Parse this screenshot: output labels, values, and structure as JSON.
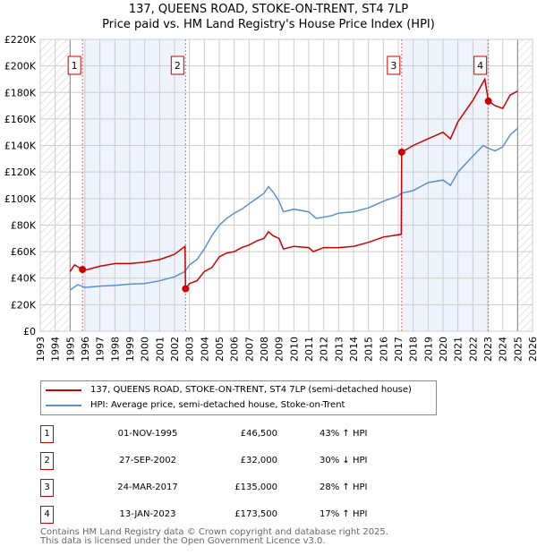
{
  "chart_data": {
    "type": "line",
    "title": "137, QUEENS ROAD, STOKE-ON-TRENT, ST4 7LP",
    "subtitle": "Price paid vs. HM Land Registry's House Price Index (HPI)",
    "xlim": [
      1993,
      2026
    ],
    "ylim": [
      0,
      220000
    ],
    "xticks": [
      "1993",
      "1994",
      "1995",
      "1996",
      "1997",
      "1998",
      "1999",
      "2000",
      "2001",
      "2002",
      "2003",
      "2004",
      "2005",
      "2006",
      "2007",
      "2008",
      "2009",
      "2010",
      "2011",
      "2012",
      "2013",
      "2014",
      "2015",
      "2016",
      "2017",
      "2018",
      "2019",
      "2020",
      "2021",
      "2022",
      "2023",
      "2024",
      "2025",
      "2026"
    ],
    "yticks": [
      {
        "v": 0,
        "l": "£0"
      },
      {
        "v": 20000,
        "l": "£20K"
      },
      {
        "v": 40000,
        "l": "£40K"
      },
      {
        "v": 60000,
        "l": "£60K"
      },
      {
        "v": 80000,
        "l": "£80K"
      },
      {
        "v": 100000,
        "l": "£100K"
      },
      {
        "v": 120000,
        "l": "£120K"
      },
      {
        "v": 140000,
        "l": "£140K"
      },
      {
        "v": 160000,
        "l": "£160K"
      },
      {
        "v": 180000,
        "l": "£180K"
      },
      {
        "v": 200000,
        "l": "£200K"
      },
      {
        "v": 220000,
        "l": "£220K"
      }
    ],
    "grid": true,
    "hatched_ranges": [
      [
        1993,
        1995
      ],
      [
        2025,
        2026
      ]
    ],
    "shaded_ranges": [
      [
        1995.83,
        2002.74
      ],
      [
        2017.23,
        2023.04
      ]
    ],
    "series": [
      {
        "name": "137, QUEENS ROAD, STOKE-ON-TRENT, ST4 7LP (semi-detached house)",
        "color": "#cc0000",
        "x": [
          1995,
          1995.3,
          1995.83,
          1996,
          1997,
          1998,
          1999,
          2000,
          2001,
          2002,
          2002.7,
          2002.74,
          2003,
          2003.5,
          2004,
          2004.5,
          2005,
          2005.5,
          2006,
          2006.5,
          2007,
          2007.5,
          2008,
          2008.3,
          2008.6,
          2009,
          2009.3,
          2010,
          2011,
          2011.3,
          2012,
          2013,
          2014,
          2015,
          2016,
          2017.2,
          2017.23,
          2018,
          2019,
          2020,
          2020.5,
          2021,
          2022,
          2022.8,
          2023.04,
          2023.5,
          2024,
          2024.5,
          2025
        ],
        "y": [
          45000,
          50000,
          46500,
          46000,
          49000,
          51000,
          51000,
          52000,
          54000,
          58000,
          64000,
          32000,
          36000,
          38000,
          45000,
          48000,
          56000,
          59000,
          60000,
          63000,
          65000,
          68000,
          70000,
          75000,
          72000,
          70000,
          62000,
          64000,
          63000,
          60000,
          63000,
          63000,
          64000,
          67000,
          71000,
          73000,
          135000,
          140000,
          145000,
          150000,
          145000,
          158000,
          174000,
          190000,
          173500,
          170000,
          168000,
          178000,
          181000
        ]
      },
      {
        "name": "HPI: Average price, semi-detached house, Stoke-on-Trent",
        "color": "#5b8fd4",
        "x": [
          1995,
          1995.5,
          1996,
          1997,
          1998,
          1999,
          2000,
          2001,
          2002,
          2002.7,
          2003,
          2003.5,
          2004,
          2004.5,
          2005,
          2005.5,
          2006,
          2006.5,
          2007,
          2007.5,
          2008,
          2008.3,
          2008.6,
          2009,
          2009.3,
          2010,
          2011,
          2011.5,
          2012.5,
          2013,
          2014,
          2015,
          2016,
          2017,
          2017.2,
          2018,
          2019,
          2020,
          2020.5,
          2021,
          2022,
          2022.7,
          2023,
          2023.5,
          2024,
          2024.5,
          2025
        ],
        "y": [
          31000,
          35000,
          33000,
          34000,
          34500,
          35500,
          36000,
          38000,
          41000,
          45000,
          50000,
          54000,
          62000,
          72000,
          80000,
          85000,
          89000,
          92000,
          96000,
          100000,
          104000,
          109000,
          105000,
          98000,
          90000,
          92000,
          90000,
          85000,
          87000,
          89000,
          90000,
          93000,
          98000,
          102000,
          104000,
          106000,
          112000,
          114000,
          110000,
          120000,
          132000,
          140000,
          138000,
          136000,
          139000,
          148000,
          153000
        ]
      }
    ],
    "sales": [
      {
        "label": "1",
        "x": 1995.83,
        "y": 46500
      },
      {
        "label": "2",
        "x": 2002.74,
        "y": 32000
      },
      {
        "label": "3",
        "x": 2017.23,
        "y": 135000
      },
      {
        "label": "4",
        "x": 2023.04,
        "y": 173500
      }
    ]
  },
  "legend": {
    "items": [
      {
        "label": "137, QUEENS ROAD, STOKE-ON-TRENT, ST4 7LP (semi-detached house)",
        "color": "#cc0000"
      },
      {
        "label": "HPI: Average price, semi-detached house, Stoke-on-Trent",
        "color": "#5b8fd4"
      }
    ]
  },
  "transactions": [
    {
      "num": "1",
      "date": "01-NOV-1995",
      "price": "£46,500",
      "hpi": "43% ↑ HPI"
    },
    {
      "num": "2",
      "date": "27-SEP-2002",
      "price": "£32,000",
      "hpi": "30% ↓ HPI"
    },
    {
      "num": "3",
      "date": "24-MAR-2017",
      "price": "£135,000",
      "hpi": "28% ↑ HPI"
    },
    {
      "num": "4",
      "date": "13-JAN-2023",
      "price": "£173,500",
      "hpi": "17% ↑ HPI"
    }
  ],
  "footer": {
    "line1": "Contains HM Land Registry data © Crown copyright and database right 2025.",
    "line2": "This data is licensed under the Open Government Licence v3.0."
  }
}
